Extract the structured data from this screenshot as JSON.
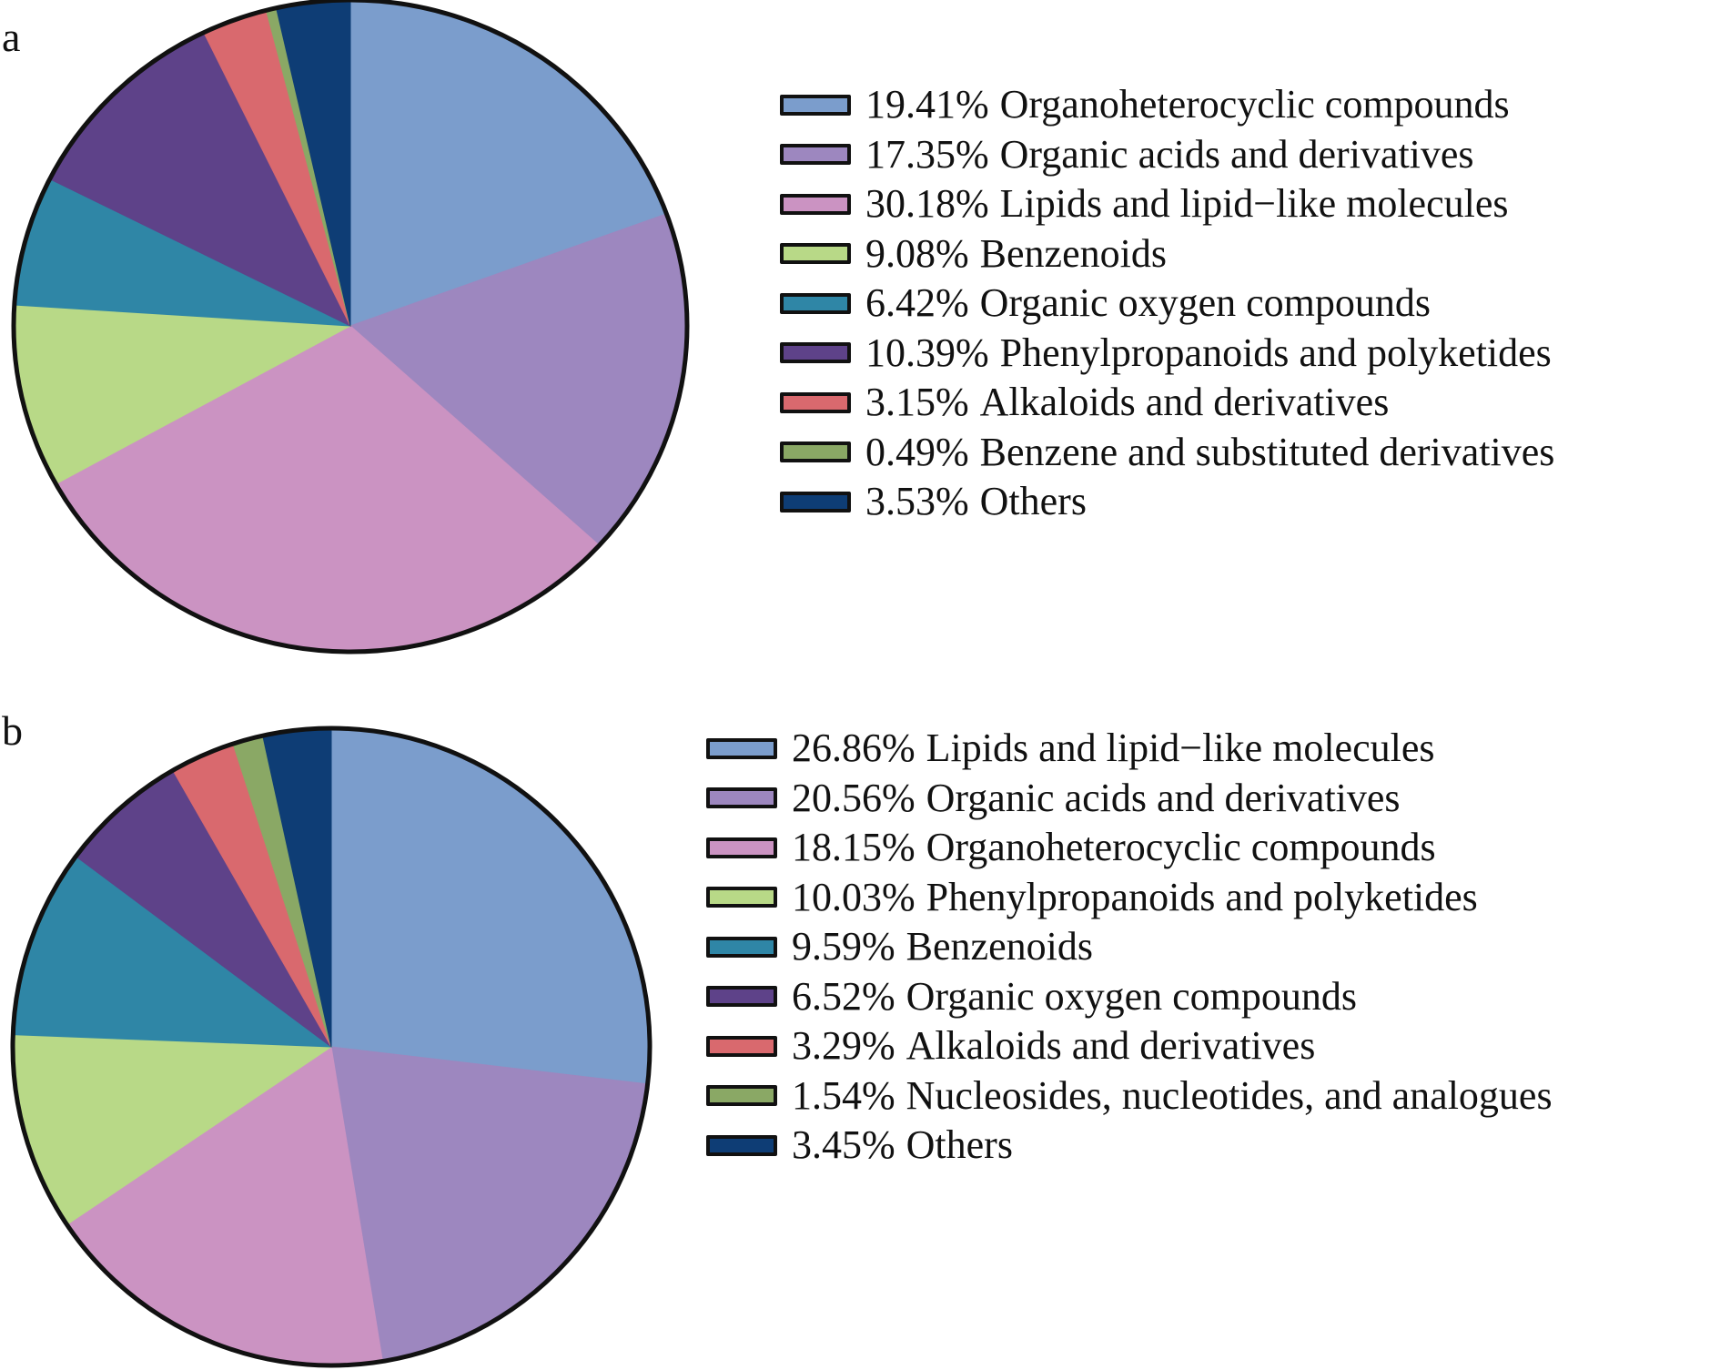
{
  "chart_data": [
    {
      "type": "pie",
      "panel_label": "a",
      "slices": [
        {
          "value": 19.41,
          "pct_label": "19.41%",
          "label": "Organoheterocyclic compounds",
          "color": "#7b9dcc"
        },
        {
          "value": 17.35,
          "pct_label": "17.35%",
          "label": "Organic acids and derivatives",
          "color": "#9d87bf"
        },
        {
          "value": 30.18,
          "pct_label": "30.18%",
          "label": "Lipids and lipid−like molecules",
          "color": "#cb93c2"
        },
        {
          "value": 9.08,
          "pct_label": "9.08%",
          "label": "Benzenoids",
          "color": "#b8d987"
        },
        {
          "value": 6.42,
          "pct_label": "6.42%",
          "label": "Organic oxygen compounds",
          "color": "#2f86a6"
        },
        {
          "value": 10.39,
          "pct_label": "10.39%",
          "label": "Phenylpropanoids and polyketides",
          "color": "#5e4289"
        },
        {
          "value": 3.15,
          "pct_label": "3.15%",
          "label": "Alkaloids and derivatives",
          "color": "#d9696e"
        },
        {
          "value": 0.49,
          "pct_label": "0.49%",
          "label": "Benzene and substituted derivatives",
          "color": "#8aa865"
        },
        {
          "value": 3.53,
          "pct_label": "3.53%",
          "label": "Others",
          "color": "#0e3d75"
        }
      ]
    },
    {
      "type": "pie",
      "panel_label": "b",
      "slices": [
        {
          "value": 26.86,
          "pct_label": "26.86%",
          "label": "Lipids and lipid−like molecules",
          "color": "#7b9dcc"
        },
        {
          "value": 20.56,
          "pct_label": "20.56%",
          "label": "Organic acids and derivatives",
          "color": "#9d87bf"
        },
        {
          "value": 18.15,
          "pct_label": "18.15%",
          "label": "Organoheterocyclic compounds",
          "color": "#cb93c2"
        },
        {
          "value": 10.03,
          "pct_label": "10.03%",
          "label": "Phenylpropanoids and polyketides",
          "color": "#b8d987"
        },
        {
          "value": 9.59,
          "pct_label": "9.59%",
          "label": "Benzenoids",
          "color": "#2f86a6"
        },
        {
          "value": 6.52,
          "pct_label": "6.52%",
          "label": "Organic oxygen compounds",
          "color": "#5e4289"
        },
        {
          "value": 3.29,
          "pct_label": "3.29%",
          "label": "Alkaloids and derivatives",
          "color": "#d9696e"
        },
        {
          "value": 1.54,
          "pct_label": "1.54%",
          "label": "Nucleosides, nucleotides, and analogues",
          "color": "#8aa865"
        },
        {
          "value": 3.45,
          "pct_label": "3.45%",
          "label": "Others",
          "color": "#0e3d75"
        }
      ]
    }
  ]
}
